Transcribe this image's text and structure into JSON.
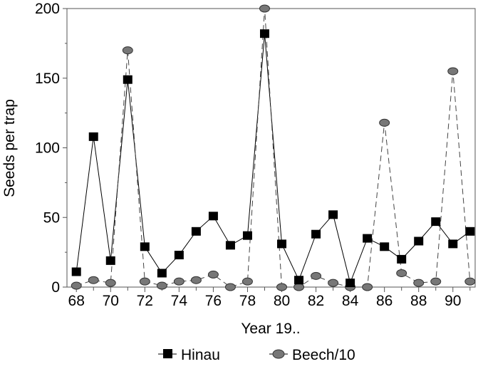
{
  "chart_data": {
    "type": "line",
    "xlabel": "Year 19..",
    "ylabel": "Seeds per trap",
    "xlim": [
      67.45,
      91.3
    ],
    "ylim": [
      0,
      200
    ],
    "x_ticks": [
      68,
      70,
      72,
      74,
      76,
      78,
      80,
      82,
      84,
      86,
      88,
      90
    ],
    "y_ticks": [
      0,
      50,
      100,
      150,
      200
    ],
    "legend_position": "bottom",
    "x": [
      68,
      69,
      70,
      71,
      72,
      73,
      74,
      75,
      76,
      77,
      78,
      79,
      80,
      81,
      82,
      83,
      84,
      85,
      86,
      87,
      88,
      89,
      90,
      91
    ],
    "series": [
      {
        "name": "Hinau",
        "marker": "square",
        "line": "solid",
        "values": [
          11,
          108,
          19,
          149,
          29,
          10,
          23,
          40,
          51,
          30,
          37,
          182,
          31,
          5,
          38,
          52,
          3,
          35,
          29,
          20,
          33,
          47,
          31,
          40
        ]
      },
      {
        "name": "Beech/10",
        "marker": "circle",
        "line": "dashed",
        "values": [
          1,
          5,
          3,
          170,
          4,
          1,
          4,
          5,
          9,
          0,
          4,
          200,
          0,
          0,
          8,
          3,
          0,
          0,
          118,
          10,
          3,
          4,
          155,
          4
        ]
      }
    ]
  }
}
